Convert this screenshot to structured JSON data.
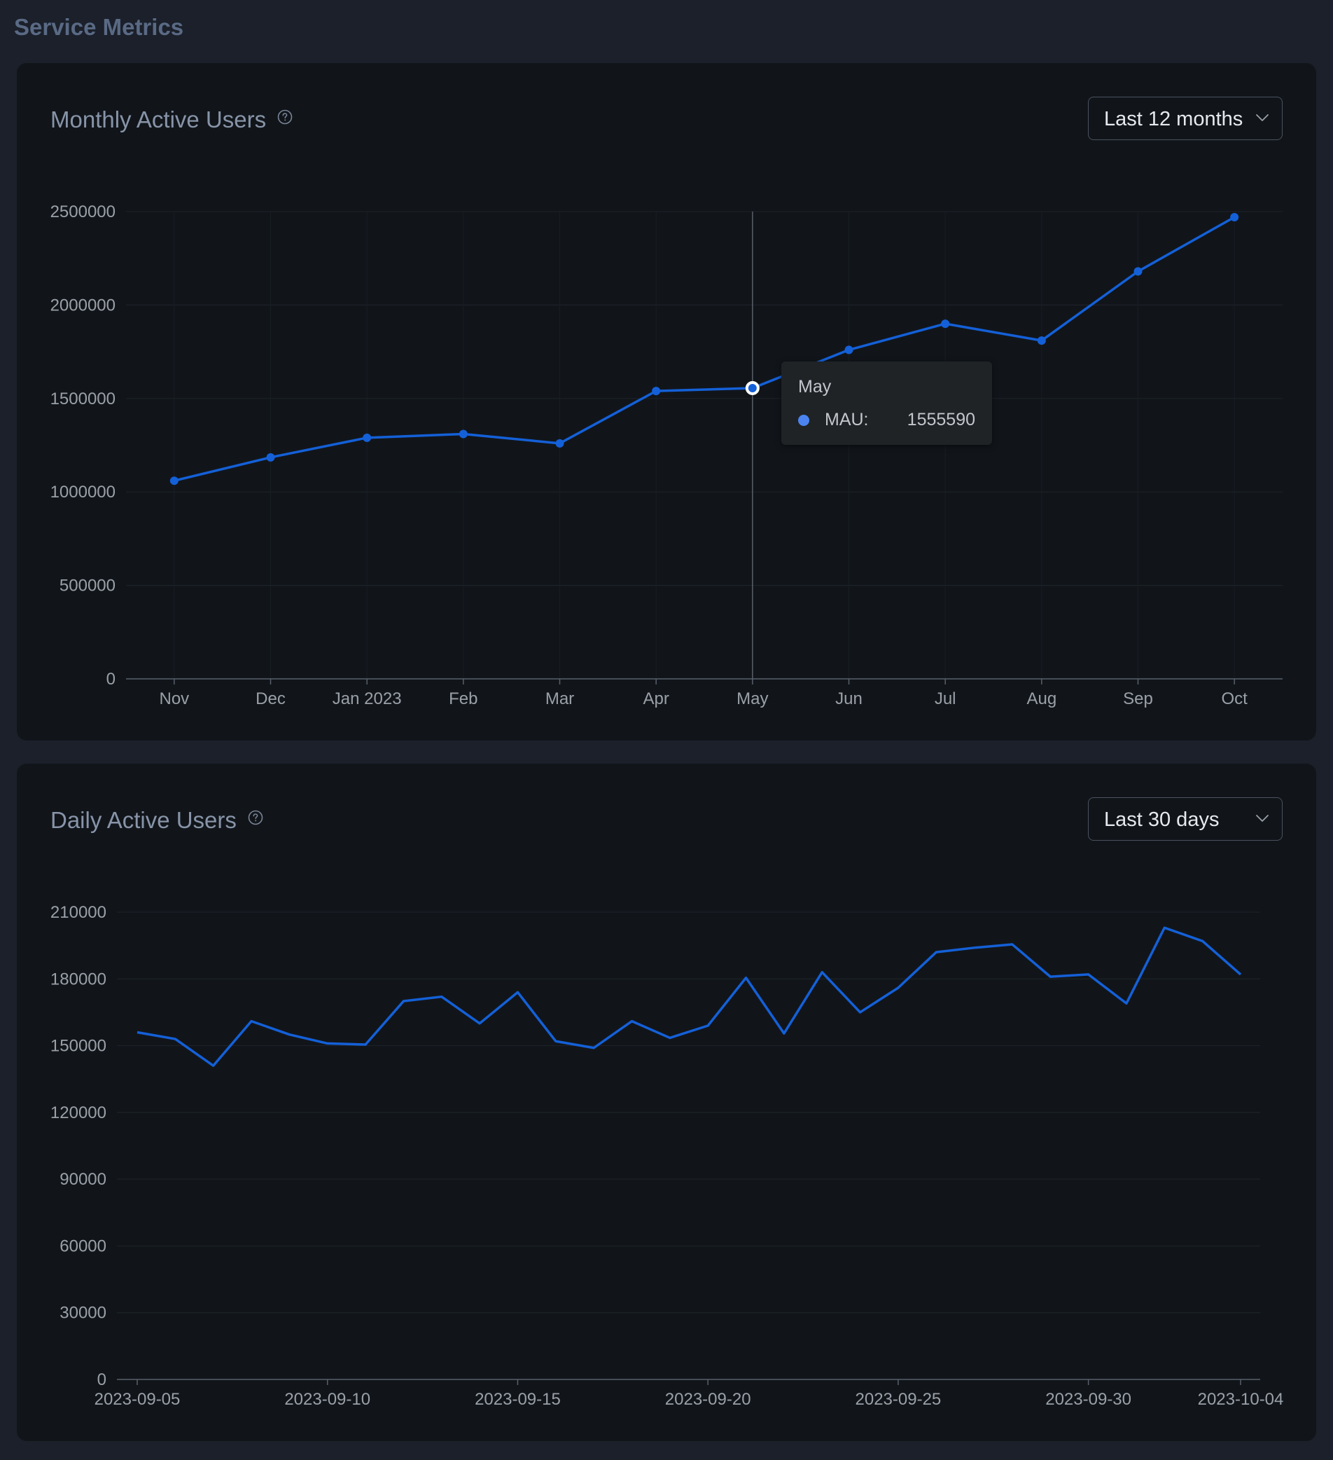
{
  "page": {
    "title": "Service Metrics"
  },
  "mau": {
    "title": "Monthly Active Users",
    "range_select": "Last 12 months",
    "tooltip": {
      "title": "May",
      "label": "MAU:",
      "value": "1555590"
    }
  },
  "dau": {
    "title": "Daily Active Users",
    "range_select": "Last 30 days"
  },
  "colors": {
    "series": "#1460d8",
    "tooltip_dot": "#4b84f0",
    "panel_bg": "#11151a",
    "page_bg": "#1b202a"
  },
  "icons": {
    "help": "question-circle-icon",
    "chevron": "chevron-down-icon"
  },
  "chart_data": [
    {
      "type": "line",
      "title": "Monthly Active Users",
      "categories": [
        "Nov",
        "Dec",
        "Jan 2023",
        "Feb",
        "Mar",
        "Apr",
        "May",
        "Jun",
        "Jul",
        "Aug",
        "Sep",
        "Oct"
      ],
      "series": [
        {
          "name": "MAU",
          "values": [
            1060000,
            1185000,
            1290000,
            1310000,
            1260000,
            1540000,
            1555590,
            1760000,
            1900000,
            1810000,
            2180000,
            2470000
          ]
        }
      ],
      "ylim": [
        0,
        2500000
      ],
      "yticks": [
        "0",
        "500000",
        "1000000",
        "1500000",
        "2000000",
        "2500000"
      ],
      "grid": true,
      "markers": true,
      "highlighted": "May"
    },
    {
      "type": "line",
      "title": "Daily Active Users",
      "x": [
        "2023-09-05",
        "2023-09-06",
        "2023-09-07",
        "2023-09-08",
        "2023-09-09",
        "2023-09-10",
        "2023-09-11",
        "2023-09-12",
        "2023-09-13",
        "2023-09-14",
        "2023-09-15",
        "2023-09-16",
        "2023-09-17",
        "2023-09-18",
        "2023-09-19",
        "2023-09-20",
        "2023-09-21",
        "2023-09-22",
        "2023-09-23",
        "2023-09-24",
        "2023-09-25",
        "2023-09-26",
        "2023-09-27",
        "2023-09-28",
        "2023-09-29",
        "2023-09-30",
        "2023-10-01",
        "2023-10-02",
        "2023-10-03",
        "2023-10-04"
      ],
      "series": [
        {
          "values": [
            156000,
            153000,
            141000,
            161000,
            155000,
            151000,
            150500,
            170000,
            172000,
            160000,
            174000,
            152000,
            149000,
            161000,
            153500,
            159000,
            180500,
            155500,
            183000,
            165000,
            176000,
            192000,
            194000,
            195500,
            181000,
            182000,
            169000,
            203000,
            197000,
            182000
          ]
        }
      ],
      "xticks": [
        "2023-09-05",
        "2023-09-10",
        "2023-09-15",
        "2023-09-20",
        "2023-09-25",
        "2023-09-30",
        "2023-10-04"
      ],
      "ylim": [
        0,
        210000
      ],
      "yticks": [
        "0",
        "30000",
        "60000",
        "90000",
        "120000",
        "150000",
        "180000",
        "210000"
      ],
      "grid": true,
      "markers": false
    }
  ]
}
